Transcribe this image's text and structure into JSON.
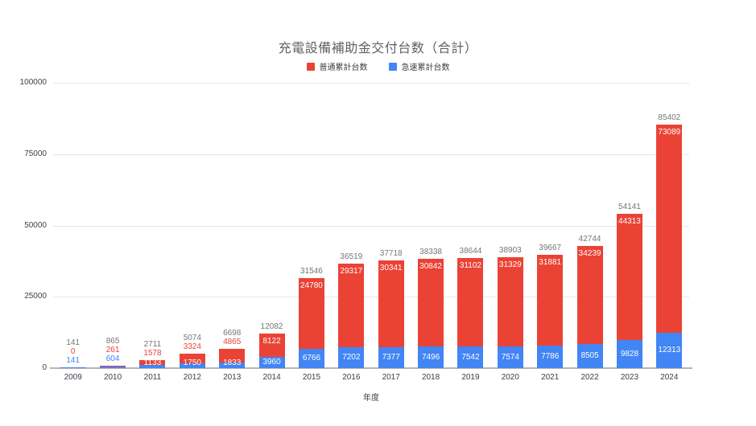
{
  "chart_data": {
    "type": "bar",
    "stacked": true,
    "title": "充電設備補助金交付台数（合計）",
    "xlabel": "年度",
    "ylabel": "",
    "ylim": [
      0,
      100000
    ],
    "yticks": [
      0,
      25000,
      50000,
      75000,
      100000
    ],
    "grid": true,
    "legend_position": "top",
    "categories": [
      "2009",
      "2010",
      "2011",
      "2012",
      "2013",
      "2014",
      "2015",
      "2016",
      "2017",
      "2018",
      "2019",
      "2020",
      "2021",
      "2022",
      "2023",
      "2024"
    ],
    "series": [
      {
        "name": "普通累計台数",
        "color": "#ea4335",
        "values": [
          0,
          261,
          1578,
          3324,
          4865,
          8122,
          24780,
          29317,
          30341,
          30842,
          31102,
          31329,
          31881,
          34239,
          44313,
          73089
        ]
      },
      {
        "name": "急速累計台数",
        "color": "#4285f4",
        "values": [
          141,
          604,
          1133,
          1750,
          1833,
          3960,
          6766,
          7202,
          7377,
          7496,
          7542,
          7574,
          7786,
          8505,
          9828,
          12313
        ]
      }
    ],
    "totals": [
      141,
      865,
      2711,
      5074,
      6698,
      12082,
      31546,
      36519,
      37718,
      38338,
      38644,
      38903,
      39667,
      42744,
      54141,
      85402
    ]
  },
  "colors": {
    "background": "#ffffff",
    "gridline": "#e6e6e6",
    "baseline": "#b5b5b5",
    "title_text": "#616161",
    "axis_tick_text": "#424242",
    "category_text": "#3c4043",
    "total_label_text": "#757575",
    "inside_label_text": "#ffffff"
  }
}
